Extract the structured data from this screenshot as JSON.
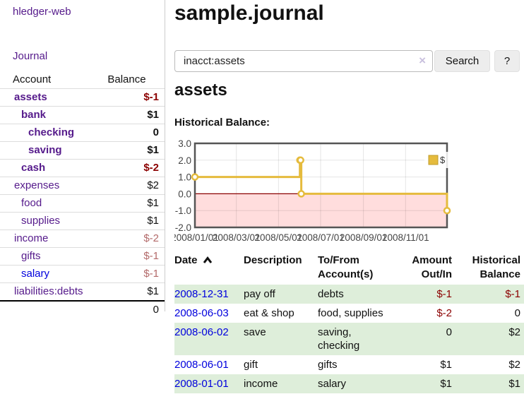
{
  "colors": {
    "link_purple": "#551a8b",
    "link_blue": "#0000dd",
    "negative_dark": "#8b0000",
    "negative_muted": "#b36a6a",
    "row_green": "#deeeda",
    "chart_line": "#e5bb3d",
    "negative_region": "#ffdddd",
    "zero_line": "#8b0000"
  },
  "sidebar": {
    "brand": "hledger-web",
    "journal": "Journal",
    "accounts": {
      "headers": {
        "account": "Account",
        "balance": "Balance"
      },
      "rows": [
        {
          "name": "assets",
          "indent": 0,
          "bold": true,
          "balance": "$-1"
        },
        {
          "name": "bank",
          "indent": 1,
          "bold": true,
          "balance": "$1"
        },
        {
          "name": "checking",
          "indent": 2,
          "bold": true,
          "balance": "0"
        },
        {
          "name": "saving",
          "indent": 2,
          "bold": true,
          "balance": "$1"
        },
        {
          "name": "cash",
          "indent": 1,
          "bold": true,
          "balance": "$-2"
        },
        {
          "name": "expenses",
          "indent": 0,
          "bold": false,
          "balance": "$2"
        },
        {
          "name": "food",
          "indent": 1,
          "bold": false,
          "balance": "$1"
        },
        {
          "name": "supplies",
          "indent": 1,
          "bold": false,
          "balance": "$1"
        },
        {
          "name": "income",
          "indent": 0,
          "bold": false,
          "balance": "$-2"
        },
        {
          "name": "gifts",
          "indent": 1,
          "bold": false,
          "balance": "$-1"
        },
        {
          "name": "salary",
          "indent": 1,
          "bold": false,
          "balance": "$-1"
        },
        {
          "name": "liabilities:debts",
          "indent": 0,
          "bold": false,
          "balance": "$1"
        }
      ],
      "total": "0"
    }
  },
  "header": {
    "title": "sample.journal"
  },
  "search": {
    "value": "inacct:assets",
    "clear_icon": "×",
    "button": "Search",
    "help": "?"
  },
  "account_page": {
    "heading": "assets",
    "chart_label": "Historical Balance:"
  },
  "chart_data": {
    "type": "line",
    "step": true,
    "series": [
      {
        "name": "$",
        "color": "#e5bb3d",
        "points": [
          [
            "2008-01-01",
            1
          ],
          [
            "2008-06-01",
            2
          ],
          [
            "2008-06-02",
            2
          ],
          [
            "2008-06-03",
            0
          ],
          [
            "2008-12-31",
            -1
          ]
        ]
      }
    ],
    "xlim": [
      "2008-01-01",
      "2008-12-31"
    ],
    "ylim": [
      -2,
      3
    ],
    "xticks": [
      "2008/01/01",
      "2008/03/01",
      "2008/05/01",
      "2008/07/01",
      "2008/09/01",
      "2008/11/01"
    ],
    "yticks": [
      "3.0",
      "2.0",
      "1.0",
      "0.0",
      "-1.0",
      "-2.0"
    ],
    "legend": "$",
    "legend_position": "top-right",
    "grid": true,
    "negative_region": true
  },
  "register": {
    "headers": {
      "date": "Date",
      "description": "Description",
      "accounts": [
        "To/From",
        "Account(s)"
      ],
      "amount": [
        "Amount",
        "Out/In"
      ],
      "balance": [
        "Historical",
        "Balance"
      ]
    },
    "rows": [
      {
        "date": "2008-12-31",
        "description": "pay off",
        "accounts": "debts",
        "amount": "$-1",
        "balance": "$-1"
      },
      {
        "date": "2008-06-03",
        "description": "eat & shop",
        "accounts": "food, supplies",
        "amount": "$-2",
        "balance": "0"
      },
      {
        "date": "2008-06-02",
        "description": "save",
        "accounts": "saving, checking",
        "amount": "0",
        "balance": "$2"
      },
      {
        "date": "2008-06-01",
        "description": "gift",
        "accounts": "gifts",
        "amount": "$1",
        "balance": "$2"
      },
      {
        "date": "2008-01-01",
        "description": "income",
        "accounts": "salary",
        "amount": "$1",
        "balance": "$1"
      }
    ]
  }
}
